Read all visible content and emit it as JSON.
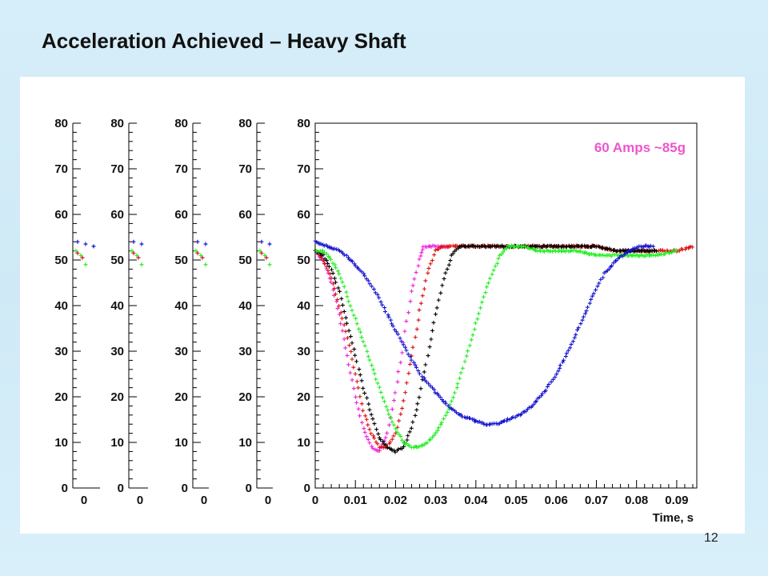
{
  "slide": {
    "title": "Acceleration Achieved – Heavy Shaft",
    "page_number": "12"
  },
  "chart_data": [
    {
      "type": "scatter",
      "panel": "narrow-1",
      "ylim": [
        0,
        80
      ],
      "y_ticks": [
        "0",
        "10",
        "20",
        "30",
        "40",
        "50",
        "60",
        "70",
        "80"
      ],
      "x_tick_label": "0"
    },
    {
      "type": "scatter",
      "panel": "narrow-2",
      "ylim": [
        0,
        80
      ],
      "y_ticks": [
        "0",
        "10",
        "20",
        "30",
        "40",
        "50",
        "60",
        "70",
        "80"
      ],
      "x_tick_label": "0"
    },
    {
      "type": "scatter",
      "panel": "narrow-3",
      "ylim": [
        0,
        80
      ],
      "y_ticks": [
        "0",
        "10",
        "20",
        "30",
        "40",
        "50",
        "60",
        "70",
        "80"
      ],
      "x_tick_label": "0"
    },
    {
      "type": "scatter",
      "panel": "narrow-4",
      "ylim": [
        0,
        80
      ],
      "y_ticks": [
        "0",
        "10",
        "20",
        "30",
        "40",
        "50",
        "60",
        "70",
        "80"
      ],
      "x_tick_label": "0"
    },
    {
      "type": "scatter",
      "panel": "main",
      "xlabel": "Time, s",
      "ylabel": "",
      "xlim": [
        0,
        0.095
      ],
      "ylim": [
        0,
        80
      ],
      "x_ticks": [
        "0",
        "0.01",
        "0.02",
        "0.03",
        "0.04",
        "0.05",
        "0.06",
        "0.07",
        "0.08",
        "0.09"
      ],
      "y_ticks": [
        "0",
        "10",
        "20",
        "30",
        "40",
        "50",
        "60",
        "70",
        "80"
      ],
      "annotation": "60 Amps ~85g",
      "annotation_color": "#ee55cc",
      "grid": false,
      "marker": "+",
      "series": [
        {
          "color": "#ee22dd",
          "x": [
            0,
            0.002,
            0.004,
            0.006,
            0.008,
            0.01,
            0.012,
            0.014,
            0.016,
            0.018,
            0.02,
            0.022,
            0.024,
            0.026,
            0.027,
            0.029,
            0.031,
            0.033
          ],
          "y": [
            52,
            50,
            45,
            38,
            29,
            20,
            13,
            9,
            8,
            12,
            21,
            32,
            43,
            50,
            53,
            53,
            53,
            53
          ]
        },
        {
          "color": "#dd1111",
          "x": [
            0,
            0.002,
            0.004,
            0.006,
            0.008,
            0.01,
            0.012,
            0.014,
            0.016,
            0.018,
            0.02,
            0.022,
            0.024,
            0.026,
            0.028,
            0.03,
            0.032,
            0.035,
            0.04,
            0.045,
            0.05,
            0.055,
            0.06,
            0.065,
            0.07,
            0.075,
            0.08,
            0.085,
            0.09,
            0.094
          ],
          "y": [
            52,
            50,
            46,
            40,
            33,
            25,
            17,
            12,
            9,
            9,
            12,
            19,
            29,
            39,
            47,
            52,
            53,
            53,
            53,
            53,
            53,
            53,
            53,
            53,
            53,
            52,
            52,
            52,
            52,
            53
          ]
        },
        {
          "color": "#000000",
          "x": [
            0,
            0.002,
            0.004,
            0.006,
            0.008,
            0.01,
            0.012,
            0.014,
            0.016,
            0.018,
            0.02,
            0.022,
            0.024,
            0.026,
            0.028,
            0.03,
            0.032,
            0.034,
            0.036,
            0.04,
            0.045,
            0.05,
            0.055,
            0.06,
            0.065,
            0.07,
            0.075,
            0.08,
            0.085
          ],
          "y": [
            52,
            51,
            48,
            43,
            36,
            29,
            22,
            16,
            11,
            9,
            8,
            9,
            13,
            20,
            29,
            38,
            46,
            51,
            53,
            53,
            53,
            53,
            53,
            53,
            53,
            53,
            52,
            52,
            52
          ]
        },
        {
          "color": "#22ee22",
          "x": [
            0,
            0.002,
            0.004,
            0.006,
            0.008,
            0.01,
            0.012,
            0.014,
            0.016,
            0.018,
            0.02,
            0.022,
            0.024,
            0.026,
            0.028,
            0.03,
            0.032,
            0.034,
            0.036,
            0.038,
            0.04,
            0.042,
            0.044,
            0.046,
            0.048,
            0.05,
            0.052,
            0.055,
            0.06,
            0.065,
            0.07,
            0.075,
            0.08,
            0.085,
            0.09
          ],
          "y": [
            52,
            52,
            50,
            47,
            42,
            37,
            32,
            27,
            22,
            17,
            13,
            10,
            9,
            9,
            10,
            12,
            15,
            19,
            24,
            30,
            36,
            42,
            47,
            51,
            53,
            53,
            53,
            52,
            52,
            52,
            51,
            51,
            51,
            51,
            52
          ]
        },
        {
          "color": "#1111cc",
          "x": [
            0,
            0.003,
            0.006,
            0.009,
            0.012,
            0.015,
            0.018,
            0.021,
            0.024,
            0.027,
            0.03,
            0.033,
            0.036,
            0.039,
            0.042,
            0.045,
            0.048,
            0.051,
            0.054,
            0.057,
            0.06,
            0.063,
            0.066,
            0.069,
            0.072,
            0.075,
            0.078,
            0.081,
            0.084
          ],
          "y": [
            54,
            53,
            52,
            50,
            47,
            43,
            38,
            33,
            28,
            24,
            21,
            18,
            16,
            15,
            14,
            14,
            15,
            16,
            18,
            21,
            25,
            30,
            36,
            42,
            47,
            50,
            52,
            53,
            53
          ]
        }
      ]
    }
  ]
}
